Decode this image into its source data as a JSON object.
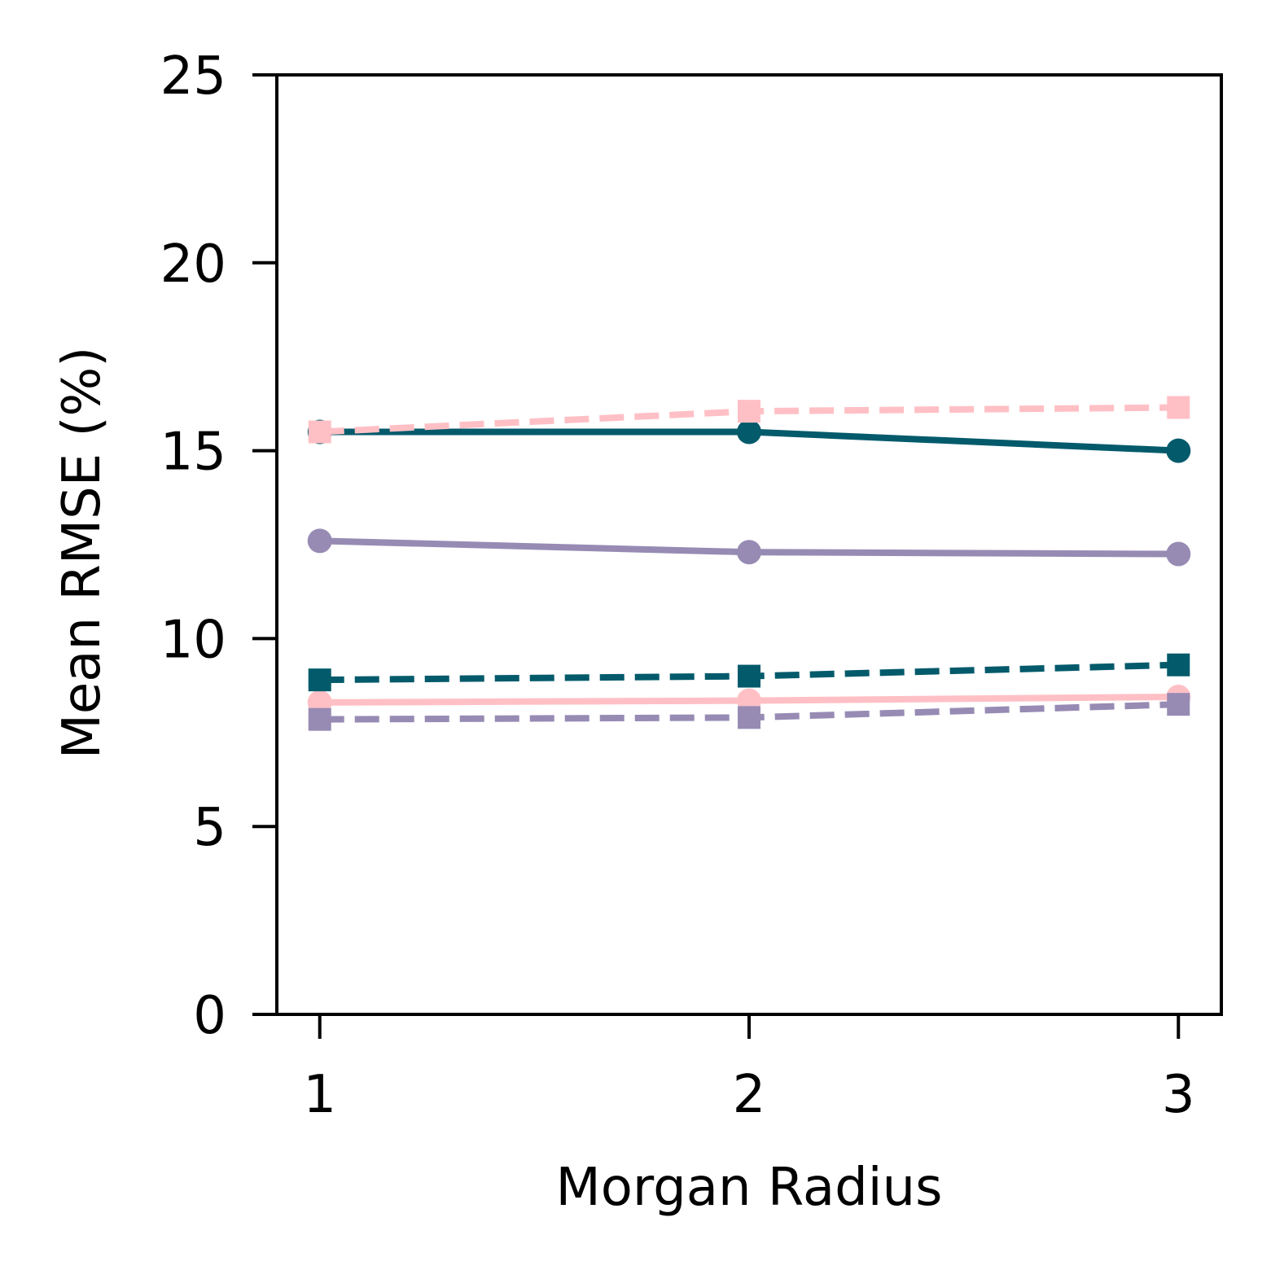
{
  "chart_data": {
    "type": "line",
    "xlabel": "Morgan Radius",
    "ylabel": "Mean RMSE (%)",
    "x": [
      1,
      2,
      3
    ],
    "xticks": [
      "1",
      "2",
      "3"
    ],
    "xlim": [
      0.9,
      3.1
    ],
    "ylim": [
      0,
      25
    ],
    "yticks": [
      "0",
      "5",
      "10",
      "15",
      "20",
      "25"
    ],
    "yticks_values": [
      0,
      5,
      10,
      15,
      20,
      25
    ],
    "grid": false,
    "legend": "none",
    "series": [
      {
        "values": [
          15.5,
          15.5,
          15.0
        ],
        "color": "#035a6b",
        "linestyle": "solid",
        "marker": "circle"
      },
      {
        "values": [
          12.6,
          12.3,
          12.25
        ],
        "color": "#978bb4",
        "linestyle": "solid",
        "marker": "circle"
      },
      {
        "values": [
          8.3,
          8.35,
          8.45
        ],
        "color": "#ffc0c5",
        "linestyle": "solid",
        "marker": "circle"
      },
      {
        "values": [
          15.5,
          16.05,
          16.15
        ],
        "color": "#ffc0c5",
        "linestyle": "dashed",
        "marker": "square"
      },
      {
        "values": [
          8.9,
          9.0,
          9.3
        ],
        "color": "#035a6b",
        "linestyle": "dashed",
        "marker": "square"
      },
      {
        "values": [
          7.85,
          7.9,
          8.25
        ],
        "color": "#978bb4",
        "linestyle": "dashed",
        "marker": "square"
      }
    ]
  }
}
